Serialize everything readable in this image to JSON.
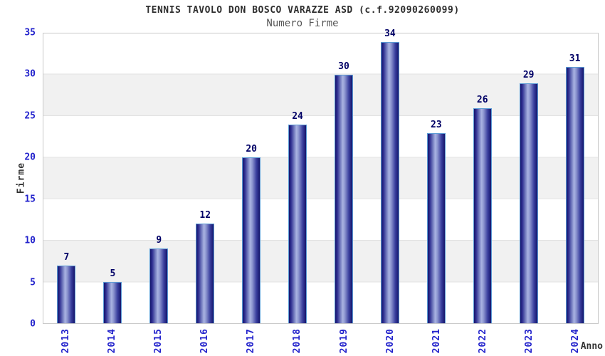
{
  "chart_data": {
    "type": "bar",
    "title": "TENNIS TAVOLO DON BOSCO VARAZZE ASD (c.f.92090260099)",
    "subtitle": "Numero Firme",
    "xlabel": "Anno",
    "ylabel": "Firme",
    "categories": [
      "2013",
      "2014",
      "2015",
      "2016",
      "2017",
      "2018",
      "2019",
      "2020",
      "2021",
      "2022",
      "2023",
      "2024"
    ],
    "values": [
      7,
      5,
      9,
      12,
      20,
      24,
      30,
      34,
      23,
      26,
      29,
      31
    ],
    "ylim": [
      0,
      35
    ],
    "yticks": [
      0,
      5,
      10,
      15,
      20,
      25,
      30,
      35
    ],
    "grid": "alternating horizontal bands every 5 units, light gray / white",
    "legend": "none",
    "colors": {
      "bar_dark": "#15156b",
      "bar_light": "#aab3e2",
      "bar_border": "#5b9bd5",
      "tick_label": "#2222cc",
      "value_label": "#000066",
      "axis_title": "#333333",
      "band_gray": "#f1f1f1",
      "plot_border": "#c8c8c8",
      "title_color": "#2e2e2e",
      "subtitle_color": "#555555"
    }
  }
}
